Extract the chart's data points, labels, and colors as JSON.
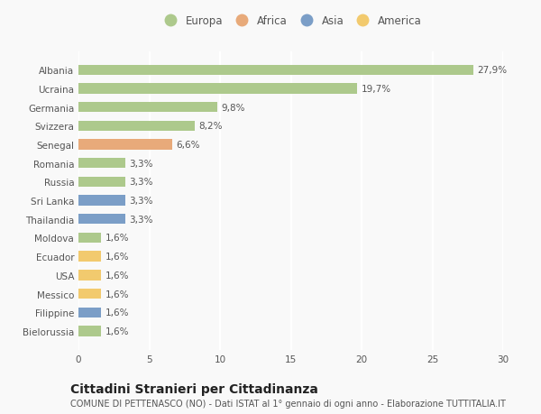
{
  "categories": [
    "Albania",
    "Ucraina",
    "Germania",
    "Svizzera",
    "Senegal",
    "Romania",
    "Russia",
    "Sri Lanka",
    "Thailandia",
    "Moldova",
    "Ecuador",
    "USA",
    "Messico",
    "Filippine",
    "Bielorussia"
  ],
  "values": [
    27.9,
    19.7,
    9.8,
    8.2,
    6.6,
    3.3,
    3.3,
    3.3,
    3.3,
    1.6,
    1.6,
    1.6,
    1.6,
    1.6,
    1.6
  ],
  "labels": [
    "27,9%",
    "19,7%",
    "9,8%",
    "8,2%",
    "6,6%",
    "3,3%",
    "3,3%",
    "3,3%",
    "3,3%",
    "1,6%",
    "1,6%",
    "1,6%",
    "1,6%",
    "1,6%",
    "1,6%"
  ],
  "continent": [
    "Europa",
    "Europa",
    "Europa",
    "Europa",
    "Africa",
    "Europa",
    "Europa",
    "Asia",
    "Asia",
    "Europa",
    "America",
    "America",
    "America",
    "Asia",
    "Europa"
  ],
  "colors": {
    "Europa": "#adc98c",
    "Africa": "#e8aa7a",
    "Asia": "#7b9ec7",
    "America": "#f2ca6e"
  },
  "legend_order": [
    "Europa",
    "Africa",
    "Asia",
    "America"
  ],
  "xlim": [
    0,
    30
  ],
  "xticks": [
    0,
    5,
    10,
    15,
    20,
    25,
    30
  ],
  "title": "Cittadini Stranieri per Cittadinanza",
  "subtitle": "COMUNE DI PETTENASCO (NO) - Dati ISTAT al 1° gennaio di ogni anno - Elaborazione TUTTITALIA.IT",
  "background_color": "#f9f9f9",
  "grid_color": "#ffffff",
  "bar_height": 0.55,
  "label_fontsize": 7.5,
  "title_fontsize": 10,
  "subtitle_fontsize": 7,
  "tick_fontsize": 7.5,
  "legend_fontsize": 8.5
}
